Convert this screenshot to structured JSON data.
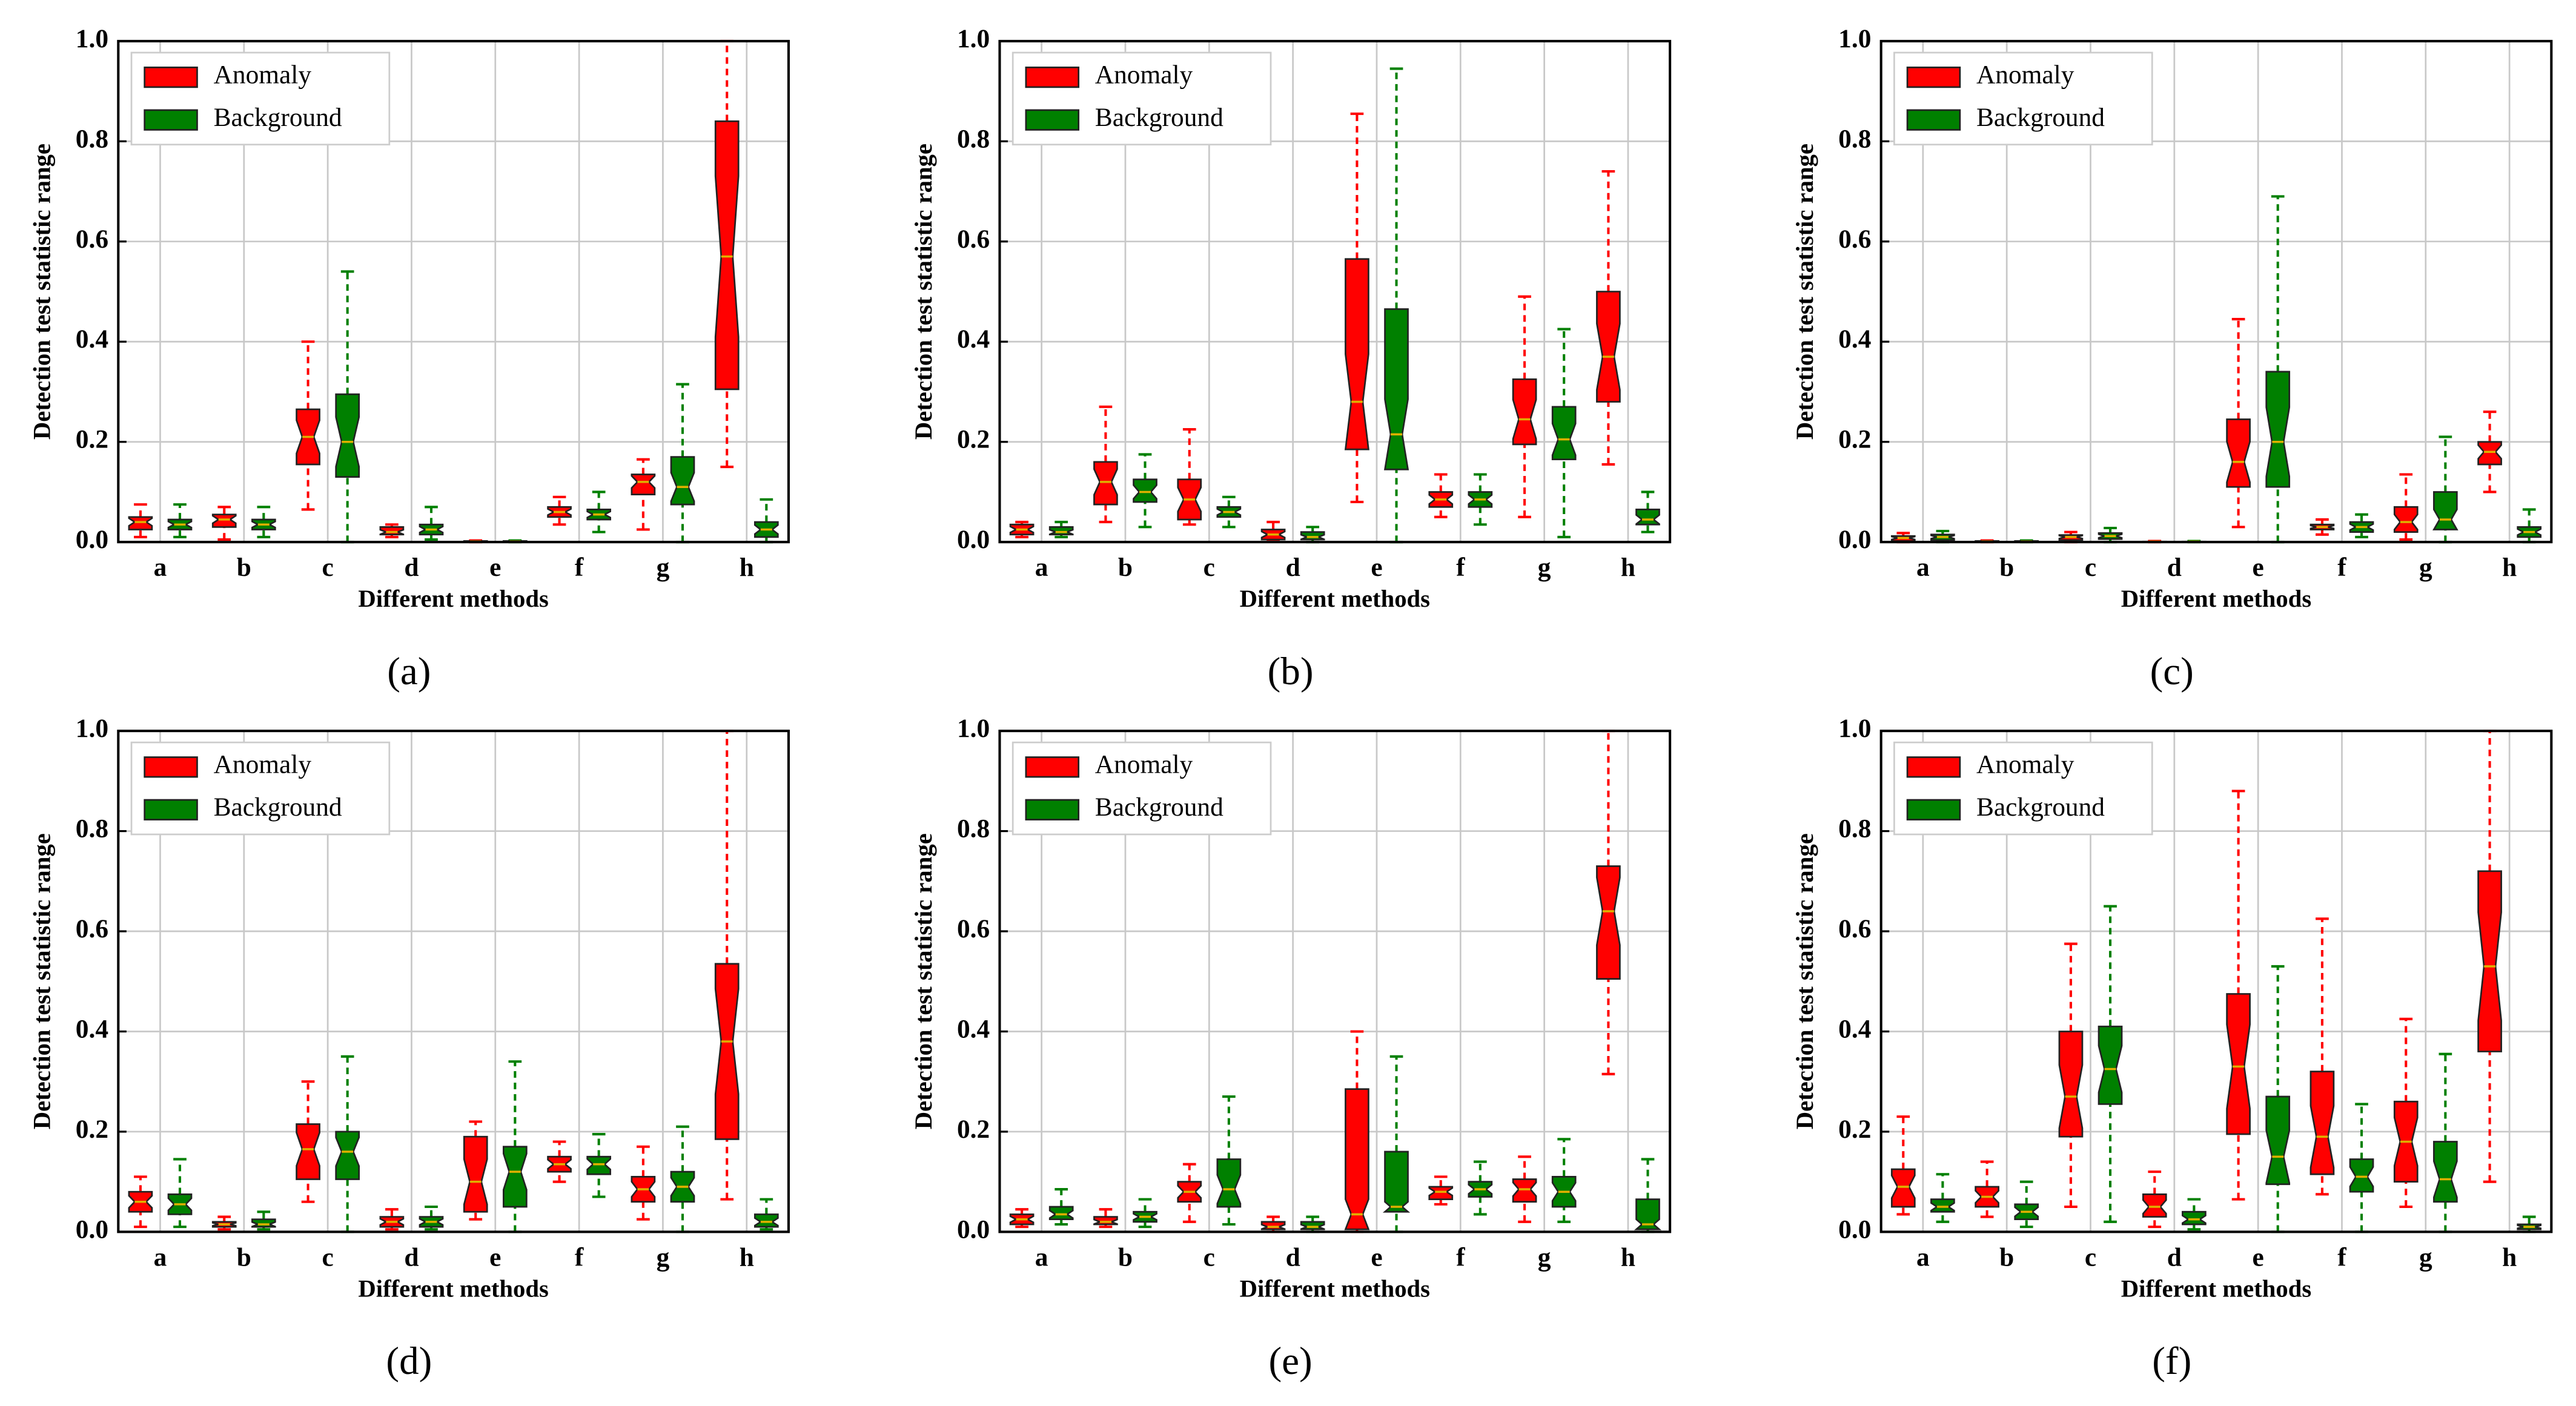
{
  "chart_data": [
    {
      "type": "box",
      "caption": "(a)",
      "xlabel": "Different methods",
      "ylabel": "Detection test statistic range",
      "categories": [
        "a",
        "b",
        "c",
        "d",
        "e",
        "f",
        "g",
        "h"
      ],
      "ylim": [
        0,
        1
      ],
      "yticks": [
        {
          "value": 0,
          "label": "0.0"
        },
        0.2,
        0.4,
        0.6,
        0.8,
        {
          "value": 1,
          "label": "1.0"
        }
      ],
      "grid": true,
      "legend": "upper left",
      "series": [
        {
          "name": "Anomaly",
          "color": "#ff0000",
          "values": [
            [
              0.01,
              0.025,
              0.04,
              0.05,
              0.075
            ],
            [
              0.005,
              0.03,
              0.045,
              0.055,
              0.07
            ],
            [
              0.065,
              0.155,
              0.21,
              0.265,
              0.4
            ],
            [
              0.01,
              0.015,
              0.02,
              0.03,
              0.035
            ],
            [
              0,
              0,
              0.001,
              0.002,
              0.003
            ],
            [
              0.035,
              0.05,
              0.06,
              0.07,
              0.09
            ],
            [
              0.025,
              0.095,
              0.12,
              0.135,
              0.165
            ],
            [
              0.15,
              0.305,
              0.57,
              0.84,
              1.0
            ]
          ]
        },
        {
          "name": "Background",
          "color": "#008000",
          "values": [
            [
              0.01,
              0.025,
              0.035,
              0.045,
              0.075
            ],
            [
              0.01,
              0.025,
              0.035,
              0.045,
              0.07
            ],
            [
              0,
              0.13,
              0.2,
              0.295,
              0.54
            ],
            [
              0.005,
              0.015,
              0.025,
              0.035,
              0.07
            ],
            [
              0,
              0,
              0.001,
              0.002,
              0.003
            ],
            [
              0.02,
              0.045,
              0.055,
              0.065,
              0.1
            ],
            [
              0,
              0.075,
              0.11,
              0.17,
              0.315
            ],
            [
              0,
              0.01,
              0.025,
              0.04,
              0.085
            ]
          ]
        }
      ]
    },
    {
      "type": "box",
      "caption": "(b)",
      "xlabel": "Different methods",
      "ylabel": "Detection test statistic range",
      "categories": [
        "a",
        "b",
        "c",
        "d",
        "e",
        "f",
        "g",
        "h"
      ],
      "ylim": [
        0,
        1
      ],
      "yticks": [
        {
          "value": 0,
          "label": "0.0"
        },
        0.2,
        0.4,
        0.6,
        0.8,
        {
          "value": 1,
          "label": "1.0"
        }
      ],
      "grid": true,
      "legend": "upper left",
      "series": [
        {
          "name": "Anomaly",
          "color": "#ff0000",
          "values": [
            [
              0.01,
              0.015,
              0.025,
              0.035,
              0.04
            ],
            [
              0.04,
              0.075,
              0.12,
              0.16,
              0.27
            ],
            [
              0.035,
              0.045,
              0.085,
              0.125,
              0.225
            ],
            [
              0.005,
              0.005,
              0.015,
              0.025,
              0.04
            ],
            [
              0.08,
              0.185,
              0.28,
              0.565,
              0.855
            ],
            [
              0.05,
              0.07,
              0.085,
              0.1,
              0.135
            ],
            [
              0.05,
              0.195,
              0.245,
              0.325,
              0.49
            ],
            [
              0.155,
              0.28,
              0.37,
              0.5,
              0.74
            ]
          ]
        },
        {
          "name": "Background",
          "color": "#008000",
          "values": [
            [
              0.01,
              0.015,
              0.02,
              0.03,
              0.04
            ],
            [
              0.03,
              0.08,
              0.1,
              0.125,
              0.175
            ],
            [
              0.03,
              0.05,
              0.06,
              0.07,
              0.09
            ],
            [
              0,
              0.005,
              0.01,
              0.02,
              0.03
            ],
            [
              0,
              0.145,
              0.215,
              0.465,
              0.945
            ],
            [
              0.035,
              0.07,
              0.085,
              0.1,
              0.135
            ],
            [
              0.01,
              0.165,
              0.205,
              0.27,
              0.425
            ],
            [
              0.02,
              0.035,
              0.045,
              0.065,
              0.1
            ]
          ]
        }
      ]
    },
    {
      "type": "box",
      "caption": "(c)",
      "xlabel": "Different methods",
      "ylabel": "Detection test statistic range",
      "categories": [
        "a",
        "b",
        "c",
        "d",
        "e",
        "f",
        "g",
        "h"
      ],
      "ylim": [
        0,
        1
      ],
      "yticks": [
        {
          "value": 0,
          "label": "0.0"
        },
        0.2,
        0.4,
        0.6,
        0.8,
        {
          "value": 1,
          "label": "1.0"
        }
      ],
      "grid": true,
      "legend": "upper left",
      "series": [
        {
          "name": "Anomaly",
          "color": "#ff0000",
          "values": [
            [
              0,
              0.002,
              0.008,
              0.012,
              0.018
            ],
            [
              0,
              0,
              0.001,
              0.002,
              0.003
            ],
            [
              0,
              0.004,
              0.01,
              0.014,
              0.02
            ],
            [
              0,
              0,
              0.001,
              0.001,
              0.002
            ],
            [
              0.03,
              0.11,
              0.16,
              0.245,
              0.445
            ],
            [
              0.015,
              0.025,
              0.03,
              0.035,
              0.045
            ],
            [
              0.005,
              0.02,
              0.04,
              0.07,
              0.135
            ],
            [
              0.1,
              0.155,
              0.18,
              0.2,
              0.26
            ]
          ]
        },
        {
          "name": "Background",
          "color": "#008000",
          "values": [
            [
              0,
              0.004,
              0.01,
              0.015,
              0.022
            ],
            [
              0,
              0,
              0.001,
              0.002,
              0.003
            ],
            [
              0,
              0.006,
              0.012,
              0.018,
              0.028
            ],
            [
              0,
              0,
              0.001,
              0.001,
              0.002
            ],
            [
              0,
              0.11,
              0.2,
              0.34,
              0.69
            ],
            [
              0.01,
              0.02,
              0.03,
              0.04,
              0.055
            ],
            [
              0,
              0.025,
              0.045,
              0.1,
              0.21
            ],
            [
              0,
              0.01,
              0.02,
              0.03,
              0.065
            ]
          ]
        }
      ]
    },
    {
      "type": "box",
      "caption": "(d)",
      "xlabel": "Different methods",
      "ylabel": "Detection test statistic range",
      "categories": [
        "a",
        "b",
        "c",
        "d",
        "e",
        "f",
        "g",
        "h"
      ],
      "ylim": [
        0,
        1
      ],
      "yticks": [
        {
          "value": 0,
          "label": "0.0"
        },
        0.2,
        0.4,
        0.6,
        0.8,
        {
          "value": 1,
          "label": "1.0"
        }
      ],
      "grid": true,
      "legend": "upper left",
      "series": [
        {
          "name": "Anomaly",
          "color": "#ff0000",
          "values": [
            [
              0.01,
              0.04,
              0.06,
              0.08,
              0.11
            ],
            [
              0.005,
              0.01,
              0.015,
              0.02,
              0.03
            ],
            [
              0.06,
              0.105,
              0.165,
              0.215,
              0.3
            ],
            [
              0.005,
              0.01,
              0.02,
              0.03,
              0.045
            ],
            [
              0.025,
              0.04,
              0.1,
              0.19,
              0.22
            ],
            [
              0.1,
              0.12,
              0.135,
              0.15,
              0.18
            ],
            [
              0.025,
              0.06,
              0.085,
              0.11,
              0.17
            ],
            [
              0.065,
              0.185,
              0.38,
              0.535,
              1.0
            ]
          ]
        },
        {
          "name": "Background",
          "color": "#008000",
          "values": [
            [
              0.01,
              0.035,
              0.055,
              0.075,
              0.145
            ],
            [
              0.005,
              0.01,
              0.015,
              0.025,
              0.04
            ],
            [
              0,
              0.105,
              0.16,
              0.2,
              0.35
            ],
            [
              0.005,
              0.01,
              0.02,
              0.03,
              0.05
            ],
            [
              0,
              0.05,
              0.12,
              0.17,
              0.34
            ],
            [
              0.07,
              0.115,
              0.135,
              0.15,
              0.195
            ],
            [
              0,
              0.06,
              0.09,
              0.12,
              0.21
            ],
            [
              0.005,
              0.01,
              0.02,
              0.035,
              0.065
            ]
          ]
        }
      ]
    },
    {
      "type": "box",
      "caption": "(e)",
      "xlabel": "Different methods",
      "ylabel": "Detection test statistic range",
      "categories": [
        "a",
        "b",
        "c",
        "d",
        "e",
        "f",
        "g",
        "h"
      ],
      "ylim": [
        0,
        1
      ],
      "yticks": [
        {
          "value": 0,
          "label": "0.0"
        },
        0.2,
        0.4,
        0.6,
        0.8,
        {
          "value": 1,
          "label": "1.0"
        }
      ],
      "grid": true,
      "legend": "upper left",
      "series": [
        {
          "name": "Anomaly",
          "color": "#ff0000",
          "values": [
            [
              0.01,
              0.015,
              0.025,
              0.035,
              0.045
            ],
            [
              0.01,
              0.015,
              0.02,
              0.03,
              0.045
            ],
            [
              0.02,
              0.06,
              0.08,
              0.1,
              0.135
            ],
            [
              0,
              0.005,
              0.01,
              0.02,
              0.03
            ],
            [
              0,
              0.005,
              0.035,
              0.285,
              0.4
            ],
            [
              0.055,
              0.065,
              0.08,
              0.09,
              0.11
            ],
            [
              0.02,
              0.06,
              0.085,
              0.105,
              0.15
            ],
            [
              0.315,
              0.505,
              0.64,
              0.73,
              1.0
            ]
          ]
        },
        {
          "name": "Background",
          "color": "#008000",
          "values": [
            [
              0.015,
              0.025,
              0.035,
              0.05,
              0.085
            ],
            [
              0.01,
              0.02,
              0.03,
              0.04,
              0.065
            ],
            [
              0.015,
              0.05,
              0.085,
              0.145,
              0.27
            ],
            [
              0,
              0.005,
              0.01,
              0.02,
              0.03
            ],
            [
              0,
              0.04,
              0.05,
              0.16,
              0.35
            ],
            [
              0.035,
              0.07,
              0.085,
              0.1,
              0.14
            ],
            [
              0.02,
              0.05,
              0.08,
              0.11,
              0.185
            ],
            [
              0,
              0.005,
              0.015,
              0.065,
              0.145
            ]
          ]
        }
      ]
    },
    {
      "type": "box",
      "caption": "(f)",
      "xlabel": "Different methods",
      "ylabel": "Detection test statistic range",
      "categories": [
        "a",
        "b",
        "c",
        "d",
        "e",
        "f",
        "g",
        "h"
      ],
      "ylim": [
        0,
        1
      ],
      "yticks": [
        {
          "value": 0,
          "label": "0.0"
        },
        0.2,
        0.4,
        0.6,
        0.8,
        {
          "value": 1,
          "label": "1.0"
        }
      ],
      "grid": true,
      "legend": "upper left",
      "series": [
        {
          "name": "Anomaly",
          "color": "#ff0000",
          "values": [
            [
              0.035,
              0.05,
              0.09,
              0.125,
              0.23
            ],
            [
              0.03,
              0.05,
              0.07,
              0.09,
              0.14
            ],
            [
              0.05,
              0.19,
              0.27,
              0.4,
              0.575
            ],
            [
              0.01,
              0.03,
              0.05,
              0.075,
              0.12
            ],
            [
              0.065,
              0.195,
              0.33,
              0.475,
              0.88
            ],
            [
              0.075,
              0.115,
              0.19,
              0.32,
              0.625
            ],
            [
              0.05,
              0.1,
              0.18,
              0.26,
              0.425
            ],
            [
              0.1,
              0.36,
              0.53,
              0.72,
              1.0
            ]
          ]
        },
        {
          "name": "Background",
          "color": "#008000",
          "values": [
            [
              0.02,
              0.04,
              0.05,
              0.065,
              0.115
            ],
            [
              0.01,
              0.025,
              0.04,
              0.055,
              0.1
            ],
            [
              0.02,
              0.255,
              0.325,
              0.41,
              0.65
            ],
            [
              0.005,
              0.015,
              0.025,
              0.04,
              0.065
            ],
            [
              0,
              0.095,
              0.15,
              0.27,
              0.53
            ],
            [
              0,
              0.08,
              0.11,
              0.145,
              0.255
            ],
            [
              0,
              0.06,
              0.105,
              0.18,
              0.355
            ],
            [
              0,
              0.005,
              0.01,
              0.015,
              0.03
            ]
          ]
        }
      ]
    }
  ]
}
